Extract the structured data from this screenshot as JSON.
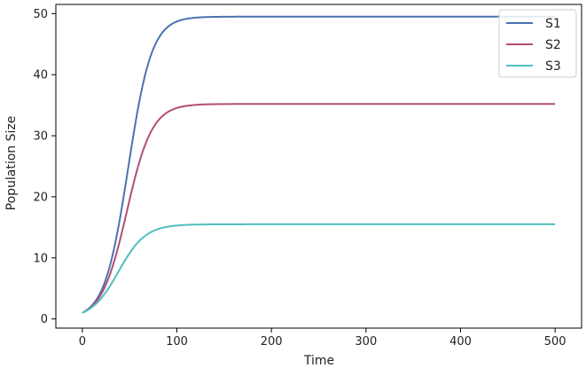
{
  "chart_data": {
    "type": "line",
    "xlabel": "Time",
    "ylabel": "Population Size",
    "xlim": [
      -28,
      528
    ],
    "ylim": [
      -1.5,
      51.5
    ],
    "xticks": [
      0,
      100,
      200,
      300,
      400,
      500
    ],
    "yticks": [
      0,
      10,
      20,
      30,
      40,
      50
    ],
    "grid": false,
    "legend_position": "top-right",
    "series": [
      {
        "name": "S1",
        "color": "#4C72B0",
        "K": 49.5,
        "r": 0.08,
        "x0": 1,
        "x": [
          0,
          20,
          40,
          60,
          80,
          100,
          125,
          150,
          200,
          300,
          400,
          500
        ],
        "values": [
          1,
          4.4,
          16.2,
          36.1,
          46.6,
          49.0,
          49.4,
          49.5,
          49.5,
          49.5,
          49.5,
          49.5
        ]
      },
      {
        "name": "S2",
        "color": "#B24E72",
        "K": 35.2,
        "r": 0.075,
        "x0": 1,
        "x": [
          0,
          20,
          40,
          60,
          80,
          100,
          125,
          150,
          200,
          300,
          400,
          500
        ],
        "values": [
          1,
          3.8,
          12.2,
          25.3,
          32.7,
          34.7,
          35.1,
          35.2,
          35.2,
          35.2,
          35.2,
          35.2
        ]
      },
      {
        "name": "S3",
        "color": "#4FBFBF",
        "K": 15.5,
        "r": 0.07,
        "x0": 1,
        "x": [
          0,
          20,
          40,
          60,
          80,
          100,
          125,
          150,
          200,
          300,
          400,
          500
        ],
        "values": [
          1,
          3.2,
          7.7,
          12.5,
          14.8,
          15.3,
          15.5,
          15.5,
          15.5,
          15.5,
          15.5,
          15.5
        ]
      }
    ]
  }
}
